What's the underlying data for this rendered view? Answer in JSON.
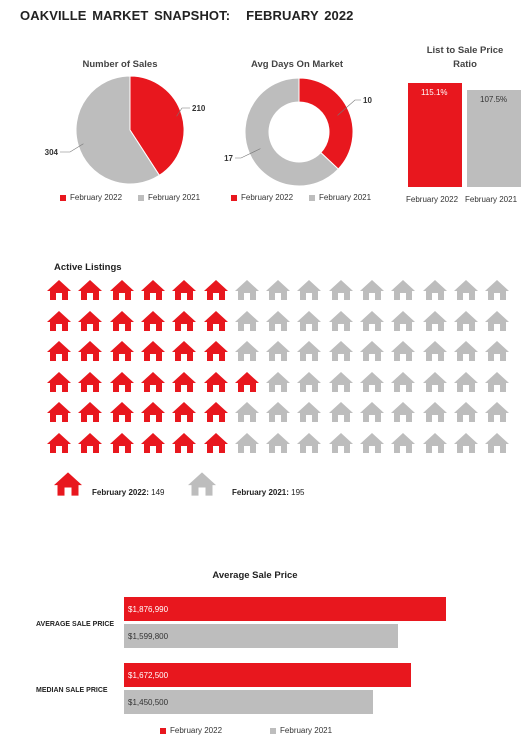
{
  "colors": {
    "primary": "#E8171E",
    "secondary": "#BDBDBD"
  },
  "header": {
    "prefix": "OAKVILLE MARKET SNAPSHOT:",
    "period": "FEBRUARY 2022"
  },
  "sales": {
    "title": "Number of Sales",
    "legend": [
      "February 2022",
      "February 2021"
    ]
  },
  "dom": {
    "title": "Avg Days On Market",
    "legend": [
      "February 2022",
      "February 2021"
    ]
  },
  "ratio": {
    "title_line1": "List to Sale Price",
    "title_line2": "Ratio"
  },
  "listings": {
    "title": "Active Listings",
    "legend_2022_label": "February 2022:",
    "legend_2021_label": "February 2021:"
  },
  "price": {
    "title": "Average Sale Price",
    "legend": [
      "February 2022",
      "February 2021"
    ]
  },
  "chart_data": [
    {
      "type": "pie",
      "title": "Number of Sales",
      "labels": [
        "February 2022",
        "February 2021"
      ],
      "values": [
        210,
        304
      ],
      "value_labels": [
        "210",
        "304"
      ]
    },
    {
      "type": "pie",
      "title": "Avg Days On Market",
      "donut": true,
      "labels": [
        "February 2022",
        "February 2021"
      ],
      "values": [
        10,
        17
      ],
      "value_labels": [
        "10",
        "17"
      ]
    },
    {
      "type": "bar",
      "title": "List to Sale Price Ratio",
      "categories": [
        "February 2022",
        "February 2021"
      ],
      "values": [
        115.1,
        107.5
      ],
      "value_labels": [
        "115.1%",
        "107.5%"
      ]
    },
    {
      "type": "table",
      "title": "Active Listings",
      "series": [
        {
          "name": "February 2022",
          "value": 149,
          "label": "149"
        },
        {
          "name": "February 2021",
          "value": 195,
          "label": "195"
        }
      ]
    },
    {
      "type": "bar",
      "title": "Average Sale Price",
      "orientation": "horizontal",
      "categories": [
        "AVERAGE SALE PRICE",
        "MEDIAN SALE PRICE"
      ],
      "series": [
        {
          "name": "February 2022",
          "values": [
            1876990,
            1672500
          ],
          "value_labels": [
            "$1,876,990",
            "$1,672,500"
          ]
        },
        {
          "name": "February 2021",
          "values": [
            1599800,
            1450500
          ],
          "value_labels": [
            "$1,599,800",
            "$1,450,500"
          ]
        }
      ]
    }
  ]
}
